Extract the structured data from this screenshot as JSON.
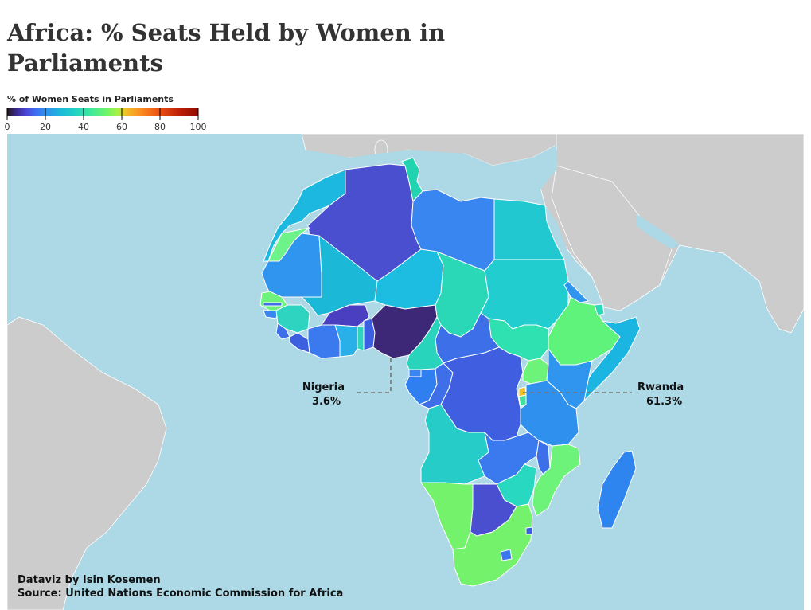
{
  "title": "Africa: % Seats Held by Women in Parliaments",
  "legend": {
    "title": "% of Women Seats in Parliaments",
    "ticks": [
      "0",
      "20",
      "40",
      "60",
      "80",
      "100"
    ],
    "color_scale": "turbo"
  },
  "colors": {
    "ocean": "#add8e6",
    "other_land": "#cccccc",
    "border": "#ffffff"
  },
  "callouts": [
    {
      "country": "Nigeria",
      "value_text": "3.6%",
      "value": 3.6
    },
    {
      "country": "Rwanda",
      "value_text": "61.3%",
      "value": 61.3
    }
  ],
  "credits": {
    "author": "Dataviz by Isin Kosemen",
    "source": "Source: United Nations Economic Commission for Africa"
  }
}
